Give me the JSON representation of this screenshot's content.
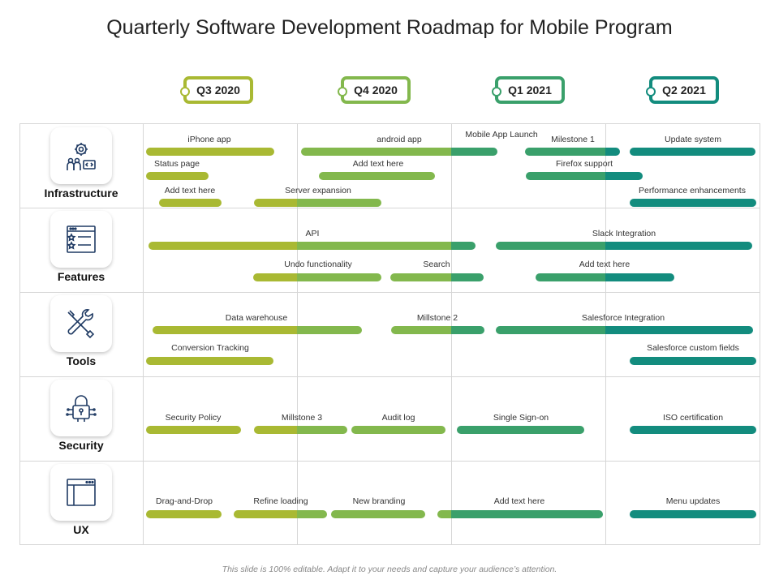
{
  "title": "Quarterly Software Development Roadmap for Mobile Program",
  "quarters": [
    {
      "label": "Q3 2020",
      "color": "#a9b933"
    },
    {
      "label": "Q4 2020",
      "color": "#83b84d"
    },
    {
      "label": "Q1 2021",
      "color": "#3aa06b"
    },
    {
      "label": "Q2 2021",
      "color": "#138c7e"
    }
  ],
  "categories": [
    {
      "label": "Infrastructure",
      "icon": "team-gear-icon"
    },
    {
      "label": "Features",
      "icon": "feature-list-icon"
    },
    {
      "label": "Tools",
      "icon": "wrench-screwdriver-icon"
    },
    {
      "label": "Security",
      "icon": "padlock-circuit-icon"
    },
    {
      "label": "UX",
      "icon": "browser-window-icon"
    }
  ],
  "tasks": [
    {
      "label": "iPhone app"
    },
    {
      "label": "android app"
    },
    {
      "label": "Mobile App Launch"
    },
    {
      "label": "Milestone  1"
    },
    {
      "label": "Update system"
    },
    {
      "label": "Status page"
    },
    {
      "label": "Add text here"
    },
    {
      "label": "Firefox  support"
    },
    {
      "label": "Add text here"
    },
    {
      "label": "Server expansion"
    },
    {
      "label": "Performance enhancements"
    },
    {
      "label": "API"
    },
    {
      "label": "Slack Integration"
    },
    {
      "label": "Undo functionality"
    },
    {
      "label": "Search"
    },
    {
      "label": "Add text here"
    },
    {
      "label": "Data  warehouse"
    },
    {
      "label": "Millstone  2"
    },
    {
      "label": "Salesforce Integration"
    },
    {
      "label": "Conversion Tracking"
    },
    {
      "label": "Salesforce custom fields"
    },
    {
      "label": "Security Policy"
    },
    {
      "label": "Millstone  3"
    },
    {
      "label": "Audit log"
    },
    {
      "label": "Single Sign-on"
    },
    {
      "label": "ISO certification"
    },
    {
      "label": "Drag-and-Drop"
    },
    {
      "label": "Refine loading"
    },
    {
      "label": "New branding"
    },
    {
      "label": "Add text here"
    },
    {
      "label": "Menu updates"
    }
  ],
  "footer": "This slide is 100% editable. Adapt it to your needs and capture your audience’s attention."
}
